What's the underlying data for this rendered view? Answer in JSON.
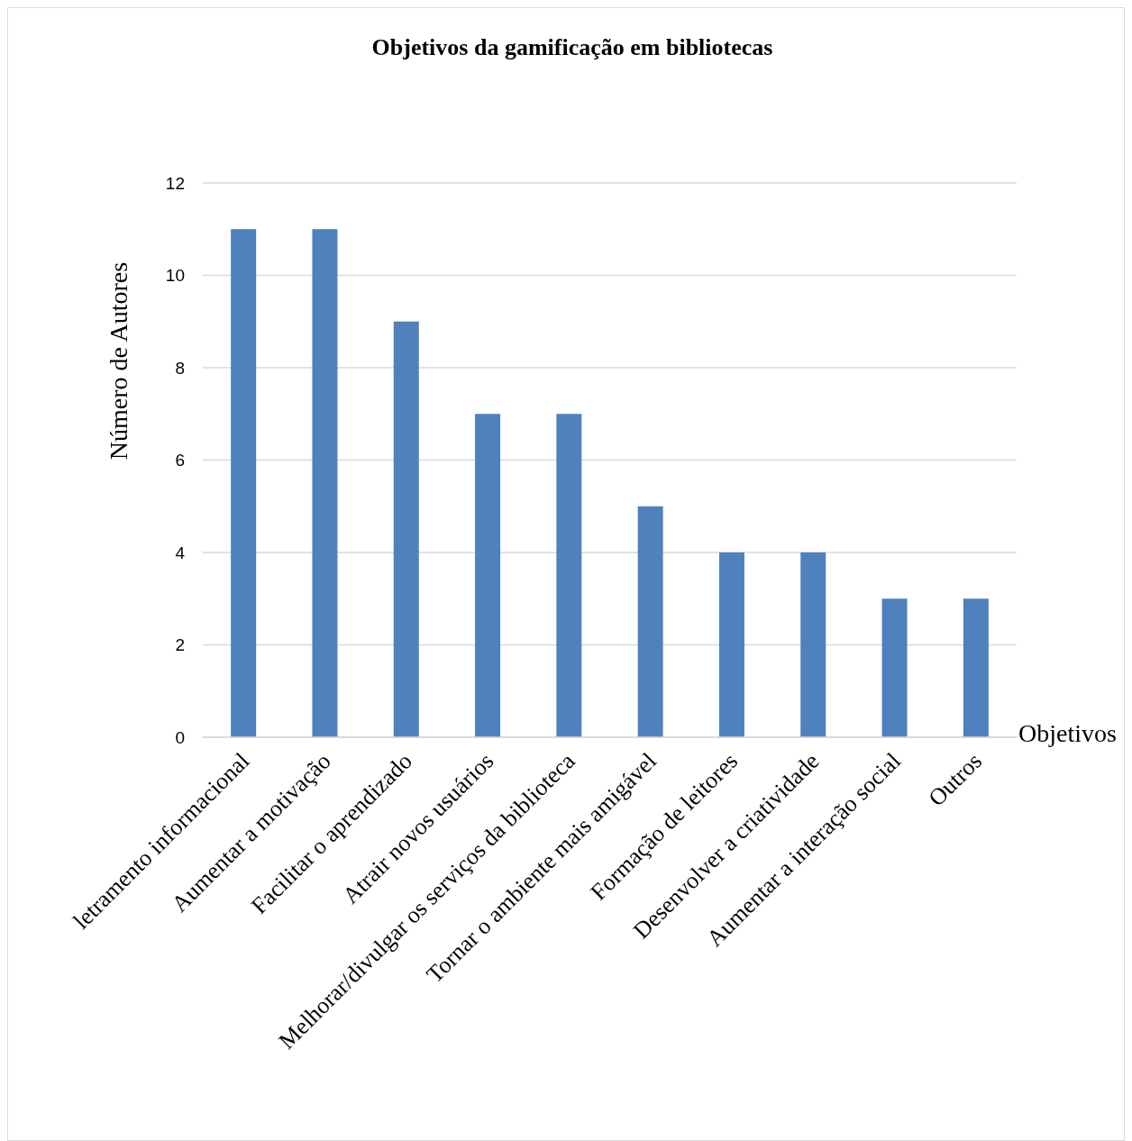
{
  "chart_data": {
    "type": "bar",
    "title": "Objetivos da gamificação em bibliotecas",
    "xlabel": "Objetivos",
    "ylabel": "Número de Autores",
    "categories": [
      "letramento informacional",
      "Aumentar a motivação",
      "Facilitar o aprendizado",
      "Atrair novos usuários",
      "Melhorar/divulgar os serviços da biblioteca",
      "Tornar o ambiente mais amigável",
      "Formação de leitores",
      "Desenvolver a criatividade",
      "Aumentar a interação social",
      "Outros"
    ],
    "values": [
      11,
      11,
      9,
      7,
      7,
      5,
      4,
      4,
      3,
      3
    ],
    "color": "#4f81bd",
    "ylim": [
      0,
      12
    ],
    "yticks": [
      0,
      2,
      4,
      6,
      8,
      10,
      12
    ],
    "grid": "y"
  }
}
